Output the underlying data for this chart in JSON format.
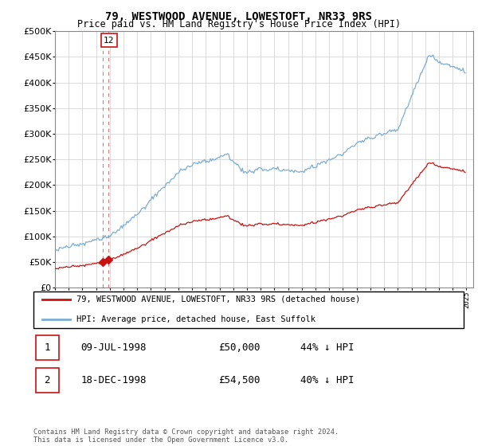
{
  "title": "79, WESTWOOD AVENUE, LOWESTOFT, NR33 9RS",
  "subtitle": "Price paid vs. HM Land Registry's House Price Index (HPI)",
  "legend_line1": "79, WESTWOOD AVENUE, LOWESTOFT, NR33 9RS (detached house)",
  "legend_line2": "HPI: Average price, detached house, East Suffolk",
  "sale1_label": "1",
  "sale1_date": "09-JUL-1998",
  "sale1_price": "£50,000",
  "sale1_hpi": "44% ↓ HPI",
  "sale2_label": "2",
  "sale2_date": "18-DEC-1998",
  "sale2_price": "£54,500",
  "sale2_hpi": "40% ↓ HPI",
  "footnote": "Contains HM Land Registry data © Crown copyright and database right 2024.\nThis data is licensed under the Open Government Licence v3.0.",
  "hpi_color": "#7aaed6",
  "price_color": "#cc1111",
  "marker_color": "#cc1111",
  "dashed_line_color": "#dd6666",
  "background_color": "#ffffff",
  "grid_color": "#cccccc",
  "ylim_max": 500000,
  "ylim_min": 0,
  "xmin": 1995.0,
  "xmax": 2025.5,
  "label_box_color": "#cc1111"
}
